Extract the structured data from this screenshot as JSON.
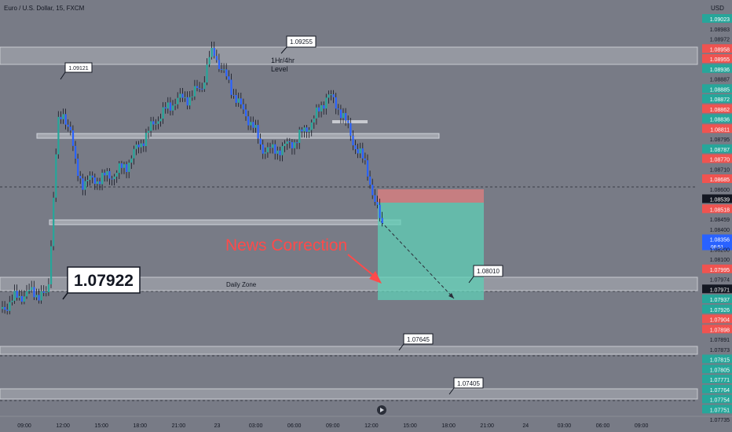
{
  "header": {
    "symbol_title": "Euro / U.S. Dollar, 15, FXCM",
    "currency": "USD"
  },
  "chart_data": {
    "type": "candlestick",
    "y_range": [
      1.0773,
      1.0906
    ],
    "x_ticks": [
      "09:00",
      "12:00",
      "15:00",
      "18:00",
      "21:00",
      "23",
      "03:00",
      "06:00",
      "09:00",
      "12:00",
      "15:00",
      "18:00",
      "21:00",
      "24",
      "03:00",
      "06:00",
      "09:00"
    ],
    "price_scale": [
      {
        "v": "1.09023",
        "c": "#26a69a"
      },
      {
        "v": "1.08983",
        "c": ""
      },
      {
        "v": "1.08972",
        "c": ""
      },
      {
        "v": "1.08958",
        "c": "#ef5350"
      },
      {
        "v": "1.08955",
        "c": "#ef5350"
      },
      {
        "v": "1.08936",
        "c": "#26a69a"
      },
      {
        "v": "1.08887",
        "c": ""
      },
      {
        "v": "1.08885",
        "c": "#26a69a"
      },
      {
        "v": "1.08872",
        "c": "#26a69a"
      },
      {
        "v": "1.08862",
        "c": "#ef5350"
      },
      {
        "v": "1.08836",
        "c": "#26a69a"
      },
      {
        "v": "1.08811",
        "c": "#ef5350"
      },
      {
        "v": "1.08795",
        "c": ""
      },
      {
        "v": "1.08787",
        "c": "#26a69a"
      },
      {
        "v": "1.08770",
        "c": "#ef5350"
      },
      {
        "v": "1.08710",
        "c": ""
      },
      {
        "v": "1.08685",
        "c": "#ef5350"
      },
      {
        "v": "1.08600",
        "c": ""
      },
      {
        "v": "1.08539",
        "c": "#131722"
      },
      {
        "v": "1.08518",
        "c": "#ef5350"
      },
      {
        "v": "1.08459",
        "c": ""
      },
      {
        "v": "1.08400",
        "c": ""
      },
      {
        "v": "1.08356",
        "c": "#2962ff"
      },
      {
        "v": "1.08200",
        "c": ""
      },
      {
        "v": "1.08100",
        "c": ""
      },
      {
        "v": "1.07995",
        "c": "#ef5350"
      },
      {
        "v": "1.07974",
        "c": ""
      },
      {
        "v": "1.07971",
        "c": "#131722"
      },
      {
        "v": "1.07937",
        "c": "#26a69a"
      },
      {
        "v": "1.07926",
        "c": "#26a69a"
      },
      {
        "v": "1.07904",
        "c": "#ef5350"
      },
      {
        "v": "1.07898",
        "c": "#ef5350"
      },
      {
        "v": "1.07891",
        "c": ""
      },
      {
        "v": "1.07873",
        "c": ""
      },
      {
        "v": "1.07815",
        "c": "#26a69a"
      },
      {
        "v": "1.07805",
        "c": "#26a69a"
      },
      {
        "v": "1.07771",
        "c": "#26a69a"
      },
      {
        "v": "1.07764",
        "c": "#26a69a"
      },
      {
        "v": "1.07754",
        "c": "#26a69a"
      },
      {
        "v": "1.07751",
        "c": "#26a69a"
      },
      {
        "v": "1.07735",
        "c": ""
      }
    ],
    "countdown": "06:51",
    "levels": [
      {
        "label": "1.09255",
        "note_lines": [
          "1Hr/4hr",
          "Level"
        ]
      },
      {
        "label": "1.09121"
      },
      {
        "label": "1.07922"
      },
      {
        "label": "1.08010",
        "note": "Daily Zone"
      },
      {
        "label": "1.07645"
      },
      {
        "label": "1.07405"
      }
    ],
    "annotation": "News Correction",
    "colors": {
      "up": "#26a69a",
      "down": "#2962ff",
      "target_zone": "#5fcfb5",
      "stop_zone": "#d98080",
      "annotation": "#ff4a4a"
    }
  }
}
